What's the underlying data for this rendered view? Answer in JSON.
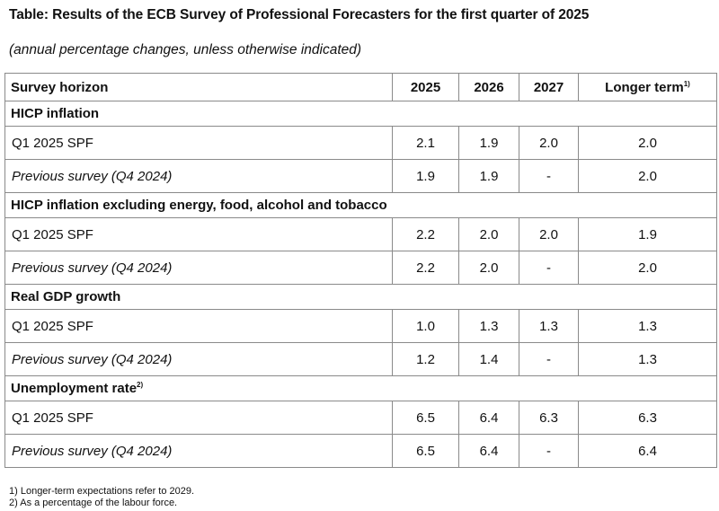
{
  "title": "Table: Results of the ECB Survey of Professional Forecasters for the first quarter of 2025",
  "subtitle": "(annual percentage changes, unless otherwise indicated)",
  "header": {
    "label": "Survey horizon",
    "years": [
      "2025",
      "2026",
      "2027"
    ],
    "longer_term": "Longer term",
    "longer_term_note": "1)"
  },
  "sections": [
    {
      "heading": "HICP inflation",
      "heading_note": "",
      "rows": [
        {
          "label": "Q1 2025 SPF",
          "values": [
            "2.1",
            "1.9",
            "2.0",
            "2.0"
          ]
        },
        {
          "label": "Previous survey (Q4 2024)",
          "values": [
            "1.9",
            "1.9",
            "-",
            "2.0"
          ]
        }
      ]
    },
    {
      "heading": "HICP inflation excluding energy, food, alcohol and tobacco",
      "heading_note": "",
      "rows": [
        {
          "label": "Q1 2025 SPF",
          "values": [
            "2.2",
            "2.0",
            "2.0",
            "1.9"
          ]
        },
        {
          "label": "Previous survey (Q4 2024)",
          "values": [
            "2.2",
            "2.0",
            "-",
            "2.0"
          ]
        }
      ]
    },
    {
      "heading": "Real GDP growth",
      "heading_note": "",
      "rows": [
        {
          "label": "Q1 2025 SPF",
          "values": [
            "1.0",
            "1.3",
            "1.3",
            "1.3"
          ]
        },
        {
          "label": "Previous survey (Q4 2024)",
          "values": [
            "1.2",
            "1.4",
            "-",
            "1.3"
          ]
        }
      ]
    },
    {
      "heading": "Unemployment rate",
      "heading_note": "2)",
      "rows": [
        {
          "label": "Q1 2025 SPF",
          "values": [
            "6.5",
            "6.4",
            "6.3",
            "6.3"
          ]
        },
        {
          "label": "Previous survey (Q4 2024)",
          "values": [
            "6.5",
            "6.4",
            "-",
            "6.4"
          ]
        }
      ]
    }
  ],
  "footnotes": [
    "1) Longer-term expectations refer to 2029.",
    "2) As a percentage of the labour force."
  ]
}
